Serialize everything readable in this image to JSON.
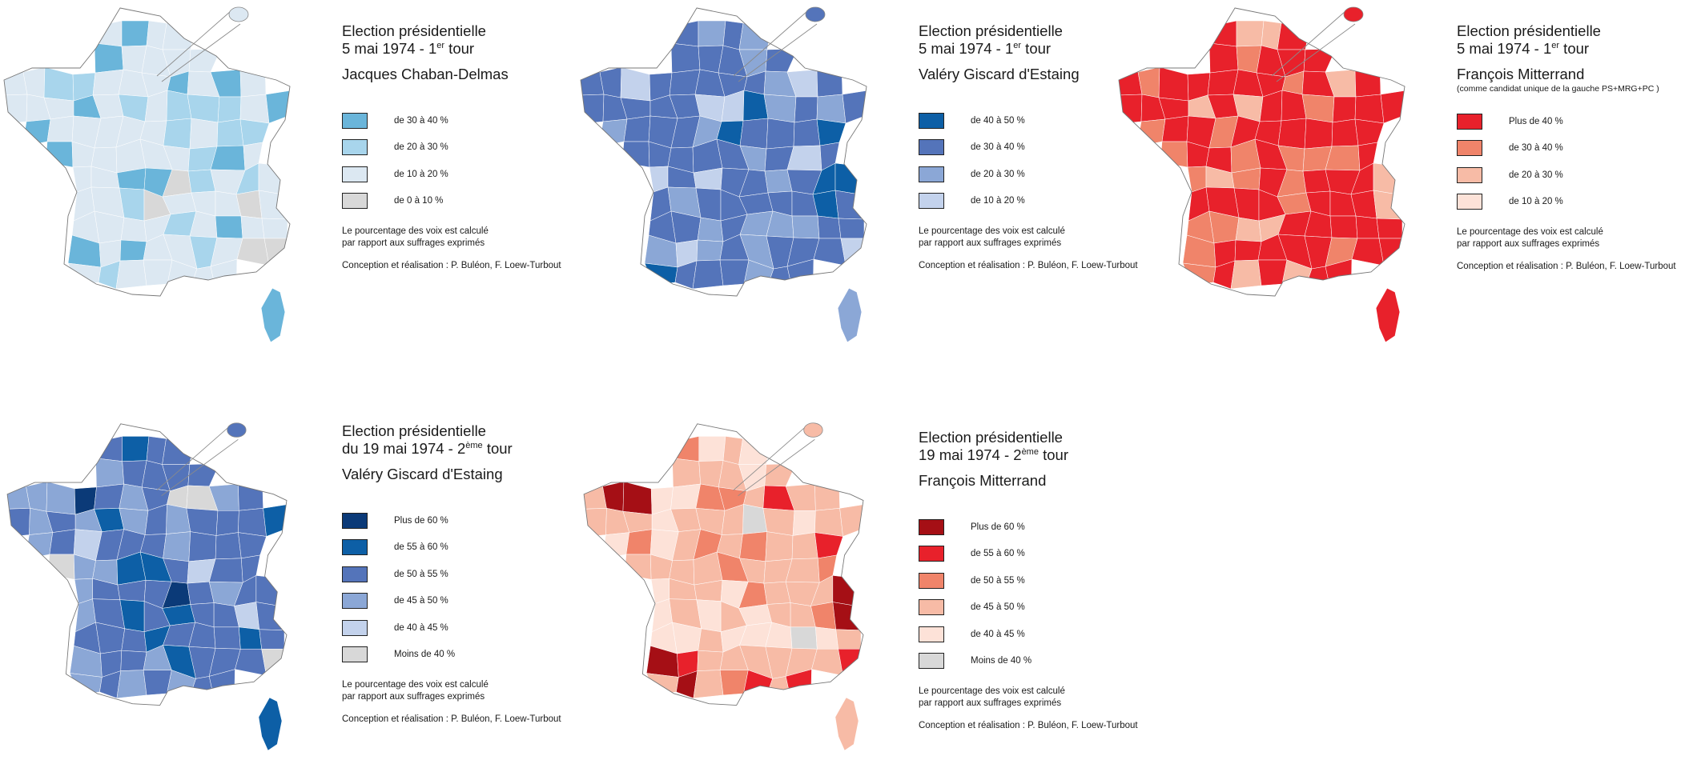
{
  "panels": [
    {
      "title_line1": "Election présidentielle",
      "title_line2_prefix": "5 mai 1974 - 1",
      "title_sup": "er",
      "title_line2_suffix": " tour",
      "candidate": "Jacques Chaban-Delmas",
      "candidate_note": "",
      "scheme": [
        "#dce8f2",
        "#a8d5ec",
        "#6ab5da",
        "#d8d8d8"
      ],
      "corsica": "#6ab5da",
      "legend": [
        {
          "label": "de 30 à 40 %",
          "color": "#6ab5da"
        },
        {
          "label": "de 20 à 30 %",
          "color": "#a8d5ec"
        },
        {
          "label": "de 10 à 20 %",
          "color": "#dce8f2"
        },
        {
          "label": "de 0 à 10 %",
          "color": "#d8d8d8"
        }
      ],
      "note_line1": "Le pourcentage des voix est calculé",
      "note_line2": "par rapport aux suffrages exprimés",
      "credit": "Conception et réalisation : P. Buléon, F. Loew-Turbout"
    },
    {
      "title_line1": "Election présidentielle",
      "title_line2_prefix": "5 mai 1974 - 1",
      "title_sup": "er",
      "title_line2_suffix": " tour",
      "candidate": "Valéry Giscard d'Estaing",
      "candidate_note": "",
      "scheme": [
        "#5474ba",
        "#8ba7d6",
        "#c3d2ec",
        "#0d5fa6"
      ],
      "corsica": "#8ba7d6",
      "legend": [
        {
          "label": "de 40 à 50 %",
          "color": "#0d5fa6"
        },
        {
          "label": "de 30 à 40 %",
          "color": "#5474ba"
        },
        {
          "label": "de 20 à 30 %",
          "color": "#8ba7d6"
        },
        {
          "label": "de 10 à 20 %",
          "color": "#c3d2ec"
        }
      ],
      "note_line1": "Le pourcentage des voix est calculé",
      "note_line2": "par rapport aux suffrages exprimés",
      "credit": "Conception et réalisation : P. Buléon, F. Loew-Turbout"
    },
    {
      "title_line1": "Election présidentielle",
      "title_line2_prefix": "5 mai 1974 - 1",
      "title_sup": "er",
      "title_line2_suffix": " tour",
      "candidate": "François Mitterrand",
      "candidate_note": "(comme candidat unique de la gauche PS+MRG+PC )",
      "scheme": [
        "#e8212b",
        "#f0846a",
        "#f7bba6",
        "#e8212b"
      ],
      "corsica": "#e8212b",
      "legend": [
        {
          "label": "Plus de  40 %",
          "color": "#e8212b"
        },
        {
          "label": "de 30 à 40 %",
          "color": "#f0846a"
        },
        {
          "label": "de 20 à 30 %",
          "color": "#f7bba6"
        },
        {
          "label": "de 10 à 20 %",
          "color": "#fde2d8"
        }
      ],
      "note_line1": "Le pourcentage des voix est calculé",
      "note_line2": "par rapport aux suffrages exprimés",
      "credit": "Conception et réalisation : P. Buléon, F. Loew-Turbout"
    },
    {
      "title_line1": "Election présidentielle",
      "title_line2_prefix": "du 19 mai 1974 - 2",
      "title_sup": "ème",
      "title_line2_suffix": " tour",
      "candidate": "Valéry Giscard d'Estaing",
      "candidate_note": "",
      "scheme": [
        "#5474ba",
        "#8ba7d6",
        "#0d5fa6",
        "#c3d2ec",
        "#0b3a78",
        "#d8d8d8"
      ],
      "corsica": "#0d5fa6",
      "legend": [
        {
          "label": "Plus de 60 %",
          "color": "#0b3a78"
        },
        {
          "label": "de 55 à 60 %",
          "color": "#0d5fa6"
        },
        {
          "label": "de 50 à 55 %",
          "color": "#5474ba"
        },
        {
          "label": "de 45 à 50 %",
          "color": "#8ba7d6"
        },
        {
          "label": "de 40 à 45 %",
          "color": "#c3d2ec"
        },
        {
          "label": "Moins de 40 %",
          "color": "#d8d8d8"
        }
      ],
      "note_line1": "Le pourcentage des voix est calculé",
      "note_line2": "par rapport aux suffrages exprimés",
      "credit": "Conception et réalisation : P. Buléon, F. Loew-Turbout"
    },
    {
      "title_line1": "Election présidentielle",
      "title_line2_prefix": "19 mai 1974 - 2",
      "title_sup": "ème",
      "title_line2_suffix": " tour",
      "candidate": "François Mitterrand",
      "candidate_note": "",
      "scheme": [
        "#f7bba6",
        "#fde2d8",
        "#f0846a",
        "#e8212b",
        "#d8d8d8",
        "#a50f15"
      ],
      "corsica": "#f7bba6",
      "legend": [
        {
          "label": "Plus de 60 %",
          "color": "#a50f15"
        },
        {
          "label": "de 55 à 60 %",
          "color": "#e8212b"
        },
        {
          "label": "de 50 à 55 %",
          "color": "#f0846a"
        },
        {
          "label": "de 45 à 50 %",
          "color": "#f7bba6"
        },
        {
          "label": "de 40 à 45 %",
          "color": "#fde2d8"
        },
        {
          "label": "Moins de 40 %",
          "color": "#d8d8d8"
        }
      ],
      "note_line1": "Le pourcentage des voix est calculé",
      "note_line2": "par rapport aux suffrages exprimés",
      "credit": "Conception et réalisation : P. Buléon, F. Loew-Turbout"
    }
  ]
}
